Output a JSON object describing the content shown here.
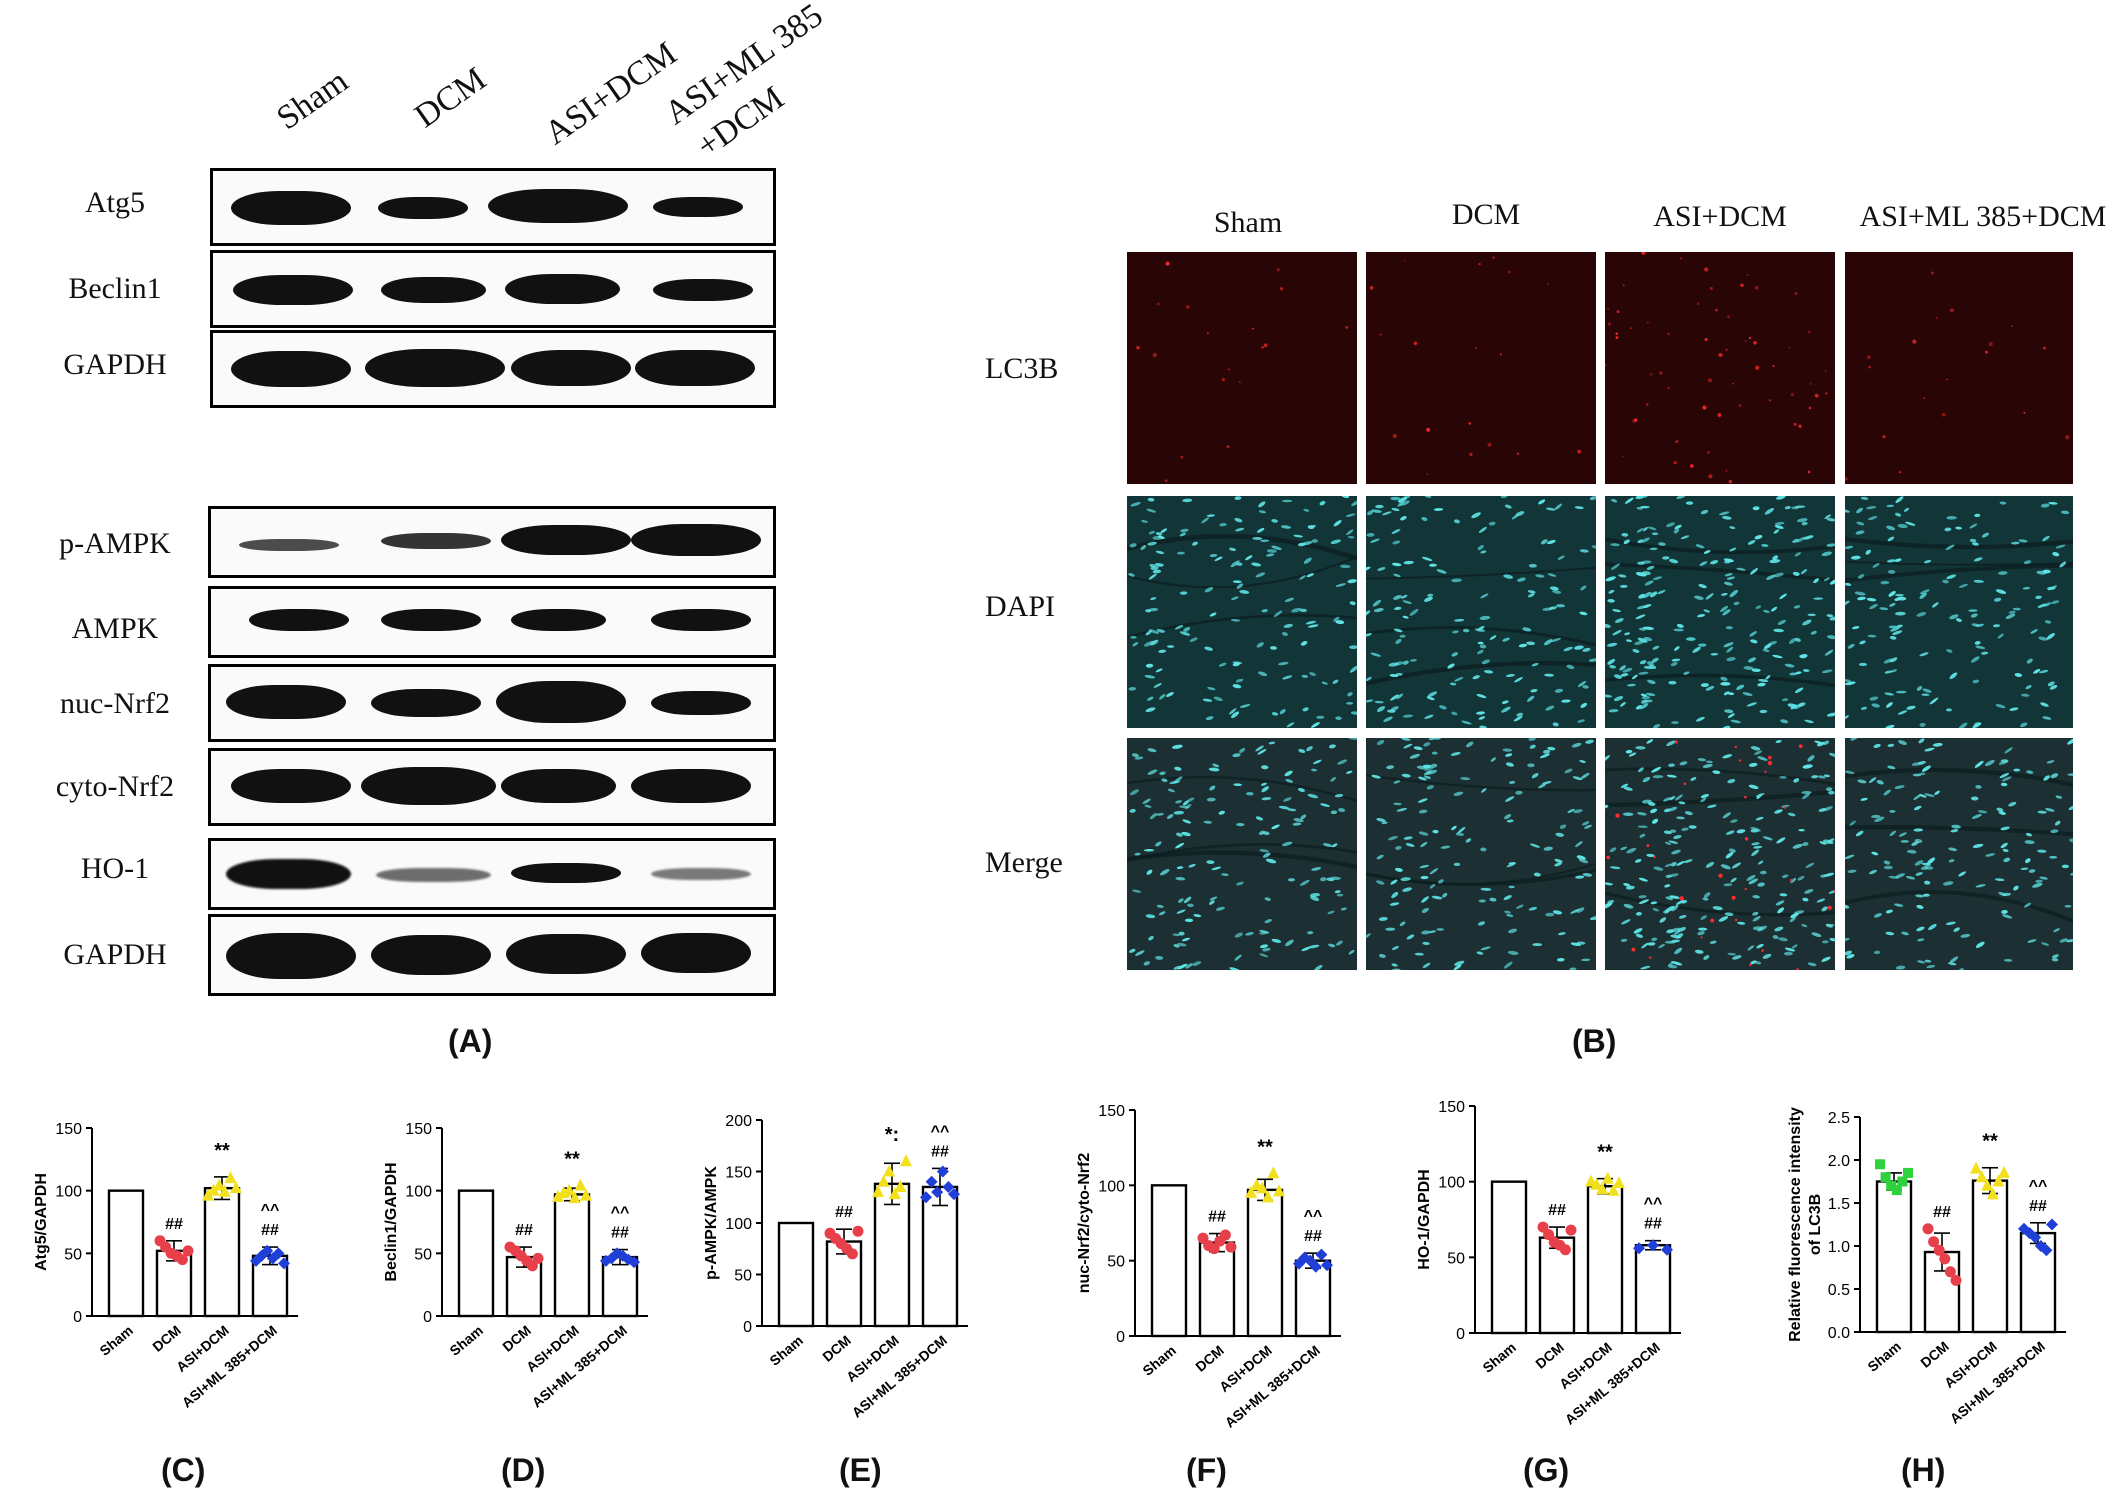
{
  "western": {
    "lanes": [
      "Sham",
      "DCM",
      "ASI+DCM",
      "ASI+ML 385",
      "+DCM"
    ],
    "blots_top": [
      "Atg5",
      "Beclin1",
      "GAPDH"
    ],
    "blots_bottom": [
      "p-AMPK",
      "AMPK",
      "nuc-Nrf2",
      "cyto-Nrf2",
      "HO-1",
      "GAPDH"
    ],
    "panel_label": "(A)"
  },
  "fluorescence": {
    "columns": [
      "Sham",
      "DCM",
      "ASI+DCM",
      "ASI+ML 385+DCM"
    ],
    "rows": [
      "LC3B",
      "DAPI",
      "Merge"
    ],
    "panel_label": "(B)",
    "colors": {
      "lc3b_bg": "#2a0506",
      "dapi_bg": "#123538",
      "merge_bg": "#1c3033",
      "nucleus": "#5fe6e8",
      "lc3b_dot": "#ff2a2a"
    }
  },
  "chart_data": [
    {
      "type": "bar",
      "panel": "(C)",
      "ylabel": "Atg5/GAPDH",
      "categories": [
        "Sham",
        "DCM",
        "ASI+DCM",
        "ASI+ML 385+DCM"
      ],
      "values": [
        100,
        52,
        102,
        48
      ],
      "errors": [
        0,
        8,
        9,
        7
      ],
      "ylim": [
        0,
        150
      ],
      "yticks": [
        0,
        50,
        100,
        150
      ],
      "points": [
        [
          100
        ],
        [
          60,
          55,
          50,
          48,
          45,
          52
        ],
        [
          96,
          100,
          104,
          99,
          110,
          102
        ],
        [
          44,
          48,
          52,
          46,
          50,
          42
        ]
      ],
      "annotations": [
        [
          "",
          ""
        ],
        [
          "##",
          ""
        ],
        [
          "**",
          ""
        ],
        [
          "^^",
          "##"
        ]
      ]
    },
    {
      "type": "bar",
      "panel": "(D)",
      "ylabel": "Beclin1/GAPDH",
      "categories": [
        "Sham",
        "DCM",
        "ASI+DCM",
        "ASI+ML 385+DCM"
      ],
      "values": [
        100,
        47,
        97,
        47
      ],
      "errors": [
        0,
        8,
        5,
        6
      ],
      "ylim": [
        0,
        150
      ],
      "yticks": [
        0,
        50,
        100,
        150
      ],
      "points": [
        [
          100
        ],
        [
          55,
          52,
          48,
          44,
          40,
          46
        ],
        [
          95,
          98,
          100,
          94,
          104,
          96
        ],
        [
          44,
          46,
          50,
          48,
          45,
          43
        ]
      ],
      "annotations": [
        [
          "",
          ""
        ],
        [
          "##",
          ""
        ],
        [
          "**",
          ""
        ],
        [
          "^^",
          "##"
        ]
      ]
    },
    {
      "type": "bar",
      "panel": "(E)",
      "ylabel": "p-AMPK/AMPK",
      "categories": [
        "Sham",
        "DCM",
        "ASI+DCM",
        "ASI+ML 385+DCM"
      ],
      "values": [
        100,
        82,
        138,
        135
      ],
      "errors": [
        0,
        12,
        20,
        18
      ],
      "ylim": [
        0,
        200
      ],
      "yticks": [
        0,
        50,
        100,
        150,
        200
      ],
      "points": [
        [
          100
        ],
        [
          90,
          85,
          80,
          75,
          70,
          92
        ],
        [
          130,
          140,
          150,
          128,
          135,
          160
        ],
        [
          125,
          140,
          130,
          150,
          135,
          128
        ]
      ],
      "annotations": [
        [
          "",
          ""
        ],
        [
          "##",
          ""
        ],
        [
          "*:",
          ""
        ],
        [
          "^^",
          "##"
        ]
      ]
    },
    {
      "type": "bar",
      "panel": "(F)",
      "ylabel": "nuc-Nrf2/cyto-Nrf2",
      "categories": [
        "Sham",
        "DCM",
        "ASI+DCM",
        "ASI+ML 385+DCM"
      ],
      "values": [
        100,
        62,
        97,
        50
      ],
      "errors": [
        0,
        6,
        7,
        5
      ],
      "ylim": [
        0,
        150
      ],
      "yticks": [
        0,
        50,
        100,
        150
      ],
      "points": [
        [
          100
        ],
        [
          65,
          60,
          58,
          63,
          67,
          59
        ],
        [
          95,
          100,
          98,
          92,
          108,
          96
        ],
        [
          48,
          52,
          50,
          46,
          54,
          47
        ]
      ],
      "annotations": [
        [
          "",
          ""
        ],
        [
          "##",
          ""
        ],
        [
          "**",
          ""
        ],
        [
          "^^",
          "##"
        ]
      ]
    },
    {
      "type": "bar",
      "panel": "(G)",
      "ylabel": "HO-1/GAPDH",
      "categories": [
        "Sham",
        "DCM",
        "ASI+DCM",
        "ASI+ML 385+DCM"
      ],
      "values": [
        100,
        63,
        97,
        58
      ],
      "errors": [
        0,
        7,
        5,
        3
      ],
      "ylim": [
        0,
        150
      ],
      "yticks": [
        0,
        50,
        100,
        150
      ],
      "points": [
        [
          100
        ],
        [
          70,
          65,
          60,
          58,
          55,
          68
        ],
        [
          100,
          98,
          95,
          102,
          94,
          99
        ],
        [
          56,
          58,
          55
        ]
      ],
      "annotations": [
        [
          "",
          ""
        ],
        [
          "##",
          ""
        ],
        [
          "**",
          ""
        ],
        [
          "^^",
          "##"
        ]
      ]
    },
    {
      "type": "bar",
      "panel": "(H)",
      "ylabel": "Relative fluorescence intensity of LC3B",
      "categories": [
        "Sham",
        "DCM",
        "ASI+DCM",
        "ASI+ML 385+DCM"
      ],
      "values": [
        1.75,
        0.93,
        1.76,
        1.15
      ],
      "errors": [
        0.1,
        0.22,
        0.15,
        0.12
      ],
      "ylim": [
        0,
        2.5
      ],
      "yticks": [
        0,
        0.5,
        1.0,
        1.5,
        2.0,
        2.5
      ],
      "points": [
        [
          1.95,
          1.8,
          1.7,
          1.65,
          1.75,
          1.85
        ],
        [
          1.2,
          1.05,
          0.95,
          0.85,
          0.7,
          0.6
        ],
        [
          1.9,
          1.8,
          1.7,
          1.6,
          1.75,
          1.85
        ],
        [
          1.2,
          1.15,
          1.1,
          1.0,
          0.95,
          1.25
        ]
      ],
      "annotations": [
        [
          "",
          ""
        ],
        [
          "##",
          ""
        ],
        [
          "**",
          ""
        ],
        [
          "^^",
          "##"
        ]
      ]
    }
  ]
}
